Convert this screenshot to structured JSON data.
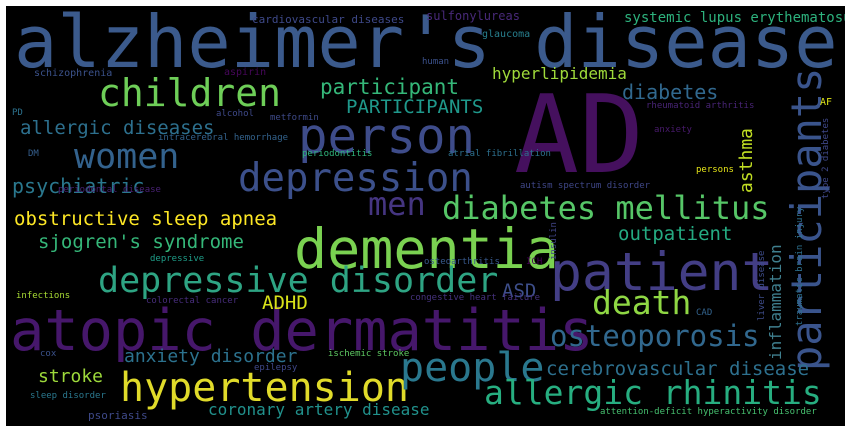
{
  "word_cloud": {
    "background": "#000000",
    "words": [
      {
        "text": "alzheimer's disease",
        "color": "#3b5a8c"
      },
      {
        "text": "AD",
        "color": "#45105e"
      },
      {
        "text": "atopic dermatitis",
        "color": "#46176b"
      },
      {
        "text": "dementia",
        "color": "#7ad151"
      },
      {
        "text": "patient",
        "color": "#433e85"
      },
      {
        "text": "person",
        "color": "#3e4c8a"
      },
      {
        "text": "participants",
        "color": "#3a548c"
      },
      {
        "text": "hypertension",
        "color": "#e0db2a"
      },
      {
        "text": "people",
        "color": "#2a788e"
      },
      {
        "text": "depression",
        "color": "#3c508b"
      },
      {
        "text": "depressive disorder",
        "color": "#2ea483"
      },
      {
        "text": "allergic rhinitis",
        "color": "#27ae80"
      },
      {
        "text": "diabetes mellitus",
        "color": "#56c667"
      },
      {
        "text": "children",
        "color": "#6ece58"
      },
      {
        "text": "women",
        "color": "#33628d"
      },
      {
        "text": "death",
        "color": "#8fd744"
      },
      {
        "text": "osteoporosis",
        "color": "#31688e"
      },
      {
        "text": "men",
        "color": "#453581"
      },
      {
        "text": "inflammation",
        "color": "#3f7f8e"
      },
      {
        "text": "participant",
        "color": "#35b779"
      },
      {
        "text": "PARTICIPANTS",
        "color": "#1f988b"
      },
      {
        "text": "diabetes",
        "color": "#31688e"
      },
      {
        "text": "allergic diseases",
        "color": "#2d708e"
      },
      {
        "text": "psychiatric",
        "color": "#2a788e"
      },
      {
        "text": "asthma",
        "color": "#c2df23"
      },
      {
        "text": "obstructive sleep apnea",
        "color": "#fde725"
      },
      {
        "text": "sjogren's syndrome",
        "color": "#35b779"
      },
      {
        "text": "outpatient",
        "color": "#25ab82"
      },
      {
        "text": "ASD",
        "color": "#3d4e8a"
      },
      {
        "text": "ADHD",
        "color": "#d8e219"
      },
      {
        "text": "cerebrovascular disease",
        "color": "#2d708e"
      },
      {
        "text": "anxiety disorder",
        "color": "#2c728e"
      },
      {
        "text": "stroke",
        "color": "#9dd93b"
      },
      {
        "text": "coronary artery disease",
        "color": "#21918c"
      },
      {
        "text": "hyperlipidemia",
        "color": "#9fda3a"
      },
      {
        "text": "systemic lupus erythematosus",
        "color": "#2db27d"
      },
      {
        "text": "cardiovascular diseases",
        "color": "#3e4989"
      },
      {
        "text": "sulfonylureas",
        "color": "#482979"
      },
      {
        "text": "glaucoma",
        "color": "#277f8e"
      },
      {
        "text": "aspirin",
        "color": "#46075a"
      },
      {
        "text": "human",
        "color": "#3b518b"
      },
      {
        "text": "schizophrenia",
        "color": "#3b528b"
      },
      {
        "text": "PD",
        "color": "#2c728e"
      },
      {
        "text": "alcohol",
        "color": "#3e4989"
      },
      {
        "text": "metformin",
        "color": "#3e4a89"
      },
      {
        "text": "intracerebral hemorrhage",
        "color": "#33638d"
      },
      {
        "text": "rheumatoid arthritis",
        "color": "#482475"
      },
      {
        "text": "anxiety",
        "color": "#481a6c"
      },
      {
        "text": "AF",
        "color": "#dde318"
      },
      {
        "text": "type 2 diabetes",
        "color": "#3f4889"
      },
      {
        "text": "DM",
        "color": "#355f8d"
      },
      {
        "text": "periodontitis",
        "color": "#2fb47c"
      },
      {
        "text": "atrial fibrillation",
        "color": "#2d708e"
      },
      {
        "text": "persons",
        "color": "#e5e419"
      },
      {
        "text": "periodontal disease",
        "color": "#482173"
      },
      {
        "text": "autism spectrum disorder",
        "color": "#3f4788"
      },
      {
        "text": "depressive",
        "color": "#1f9e89"
      },
      {
        "text": "insulin",
        "color": "#414487"
      },
      {
        "text": "osteoarthritis",
        "color": "#38598c"
      },
      {
        "text": "ICH",
        "color": "#440154"
      },
      {
        "text": "liver disease",
        "color": "#3e4c8a"
      },
      {
        "text": "traumatic brain injury",
        "color": "#2d708e"
      },
      {
        "text": "infections",
        "color": "#a8db34"
      },
      {
        "text": "colorectal cancer",
        "color": "#472d7b"
      },
      {
        "text": "congestive heart failure",
        "color": "#46327e"
      },
      {
        "text": "CAD",
        "color": "#33638d"
      },
      {
        "text": "cox",
        "color": "#3b528b"
      },
      {
        "text": "ischemic stroke",
        "color": "#5ec962"
      },
      {
        "text": "epilepsy",
        "color": "#3f4889"
      },
      {
        "text": "sleep disorder",
        "color": "#2a788e"
      },
      {
        "text": "psoriasis",
        "color": "#3e4989"
      },
      {
        "text": "attention-deficit hyperactivity disorder",
        "color": "#46c06f"
      }
    ]
  }
}
